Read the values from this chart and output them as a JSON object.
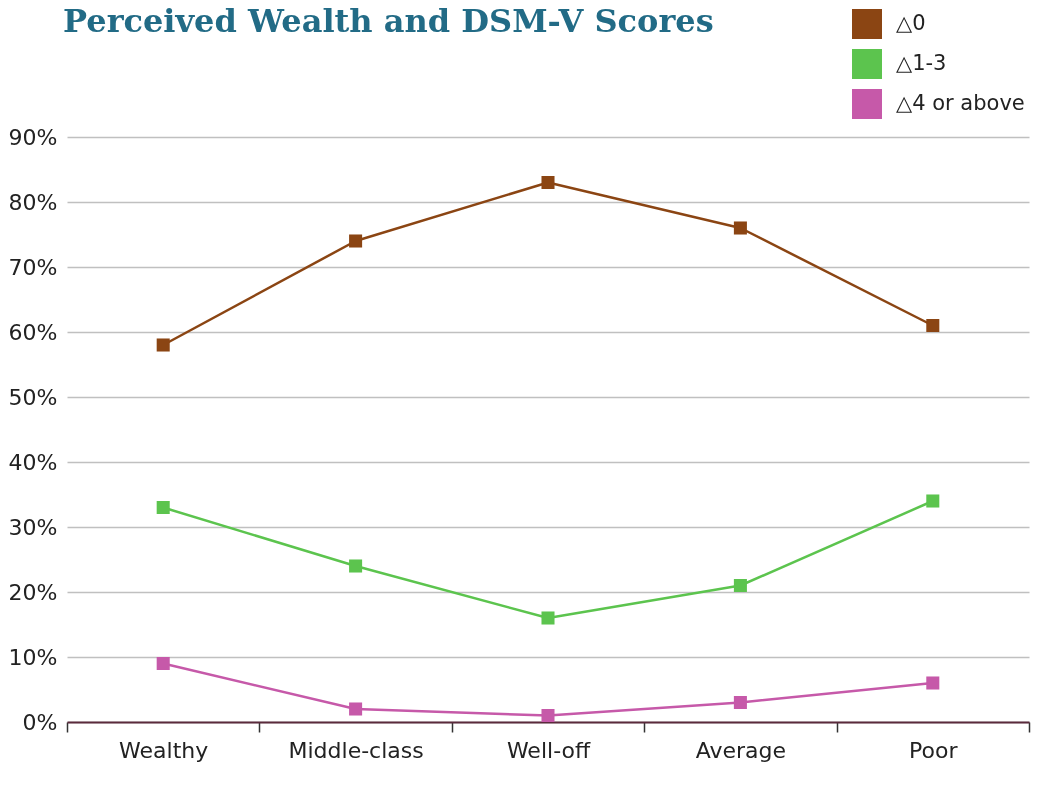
{
  "chart_data": {
    "type": "line",
    "title": "Perceived Wealth and DSM-V Scores",
    "categories": [
      "Wealthy",
      "Middle-class",
      "Well-off",
      "Average",
      "Poor"
    ],
    "series": [
      {
        "name": "△0",
        "color": "#8b4513",
        "values": [
          58,
          74,
          83,
          76,
          61
        ]
      },
      {
        "name": "△1-3",
        "color": "#5cc44e",
        "values": [
          33,
          24,
          16,
          21,
          34
        ]
      },
      {
        "name": "△4 or above",
        "color": "#c659a9",
        "values": [
          9,
          2,
          1,
          3,
          6
        ]
      }
    ],
    "ylim": [
      0,
      90
    ],
    "yticks": [
      {
        "value": 0,
        "label": "0%"
      },
      {
        "value": 10,
        "label": "10%"
      },
      {
        "value": 20,
        "label": "20%"
      },
      {
        "value": 30,
        "label": "30%"
      },
      {
        "value": 40,
        "label": "40%"
      },
      {
        "value": 50,
        "label": "50%"
      },
      {
        "value": 60,
        "label": "60%"
      },
      {
        "value": 70,
        "label": "70%"
      },
      {
        "value": 80,
        "label": "80%"
      },
      {
        "value": 90,
        "label": "90%"
      }
    ],
    "grid": "y",
    "legend": "top right",
    "marker": "square",
    "line_style": "solid"
  }
}
